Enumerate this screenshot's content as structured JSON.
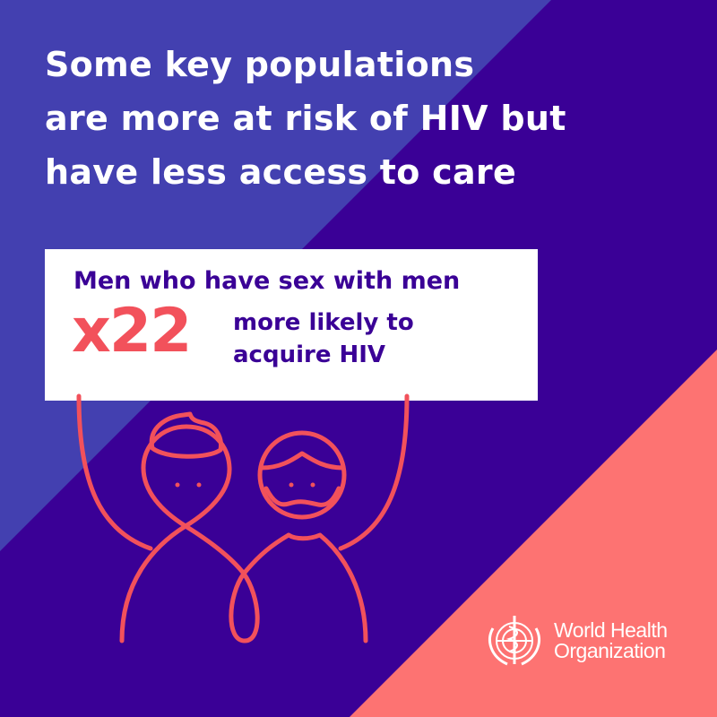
{
  "colors": {
    "light_blue": "#4340b0",
    "deep_purple": "#3a0096",
    "coral": "#fd7372",
    "accent_red": "#f2515b",
    "white": "#ffffff"
  },
  "title_lines": [
    "Some key populations",
    "are more at risk of HIV but",
    "have less access to care"
  ],
  "card": {
    "heading": "Men who have sex with men",
    "multiplier": "x22",
    "description_lines": [
      "more likely to",
      "acquire HIV"
    ]
  },
  "illustration": {
    "icon": "two-people-holding-sign-icon"
  },
  "logo": {
    "icon": "who-emblem-icon",
    "lines": [
      "World Health",
      "Organization"
    ]
  }
}
